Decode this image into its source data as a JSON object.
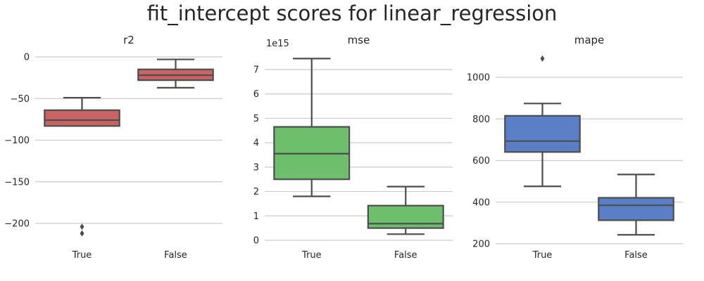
{
  "figure": {
    "title": "fit_intercept scores for linear_regression"
  },
  "colors": {
    "r2_box": "#c96363",
    "mse_box": "#6dbf6d",
    "mape_box": "#5a7fc6",
    "box_edge": "#4d4d4d",
    "grid": "#cccccc"
  },
  "chart_data": [
    {
      "type": "box",
      "title": "r2",
      "categories": [
        "True",
        "False"
      ],
      "ylim": [
        -225,
        10
      ],
      "yticks": [
        0,
        -50,
        -100,
        -150,
        -200
      ],
      "ytick_labels": [
        "0",
        "−50",
        "−100",
        "−150",
        "−200"
      ],
      "grid": true,
      "boxes": [
        {
          "category": "True",
          "whisker_low": -83,
          "q1": -83,
          "median": -76,
          "q3": -64,
          "whisker_high": -49,
          "outliers": [
            -204,
            -212
          ]
        },
        {
          "category": "False",
          "whisker_low": -37,
          "q1": -28,
          "median": -22,
          "q3": -15,
          "whisker_high": -3,
          "outliers": []
        }
      ]
    },
    {
      "type": "box",
      "title": "mse",
      "offset_label": "1e15",
      "categories": [
        "True",
        "False"
      ],
      "ylim": [
        -0.1,
        7.7
      ],
      "yticks": [
        0,
        1,
        2,
        3,
        4,
        5,
        6,
        7
      ],
      "ytick_labels": [
        "0",
        "1",
        "2",
        "3",
        "4",
        "5",
        "6",
        "7"
      ],
      "grid": true,
      "boxes": [
        {
          "category": "True",
          "whisker_low": 1.8,
          "q1": 2.5,
          "median": 3.55,
          "q3": 4.65,
          "whisker_high": 7.45,
          "outliers": []
        },
        {
          "category": "False",
          "whisker_low": 0.25,
          "q1": 0.5,
          "median": 0.68,
          "q3": 1.42,
          "whisker_high": 2.2,
          "outliers": []
        }
      ]
    },
    {
      "type": "box",
      "title": "mape",
      "categories": [
        "True",
        "False"
      ],
      "ylim": [
        200,
        1130
      ],
      "yticks": [
        200,
        400,
        600,
        800,
        1000
      ],
      "ytick_labels": [
        "200",
        "400",
        "600",
        "800",
        "1000"
      ],
      "grid": true,
      "boxes": [
        {
          "category": "True",
          "whisker_low": 476,
          "q1": 641,
          "median": 693,
          "q3": 815,
          "whisker_high": 874,
          "outliers": [
            1090
          ]
        },
        {
          "category": "False",
          "whisker_low": 243,
          "q1": 313,
          "median": 385,
          "q3": 421,
          "whisker_high": 533,
          "outliers": []
        }
      ]
    }
  ]
}
